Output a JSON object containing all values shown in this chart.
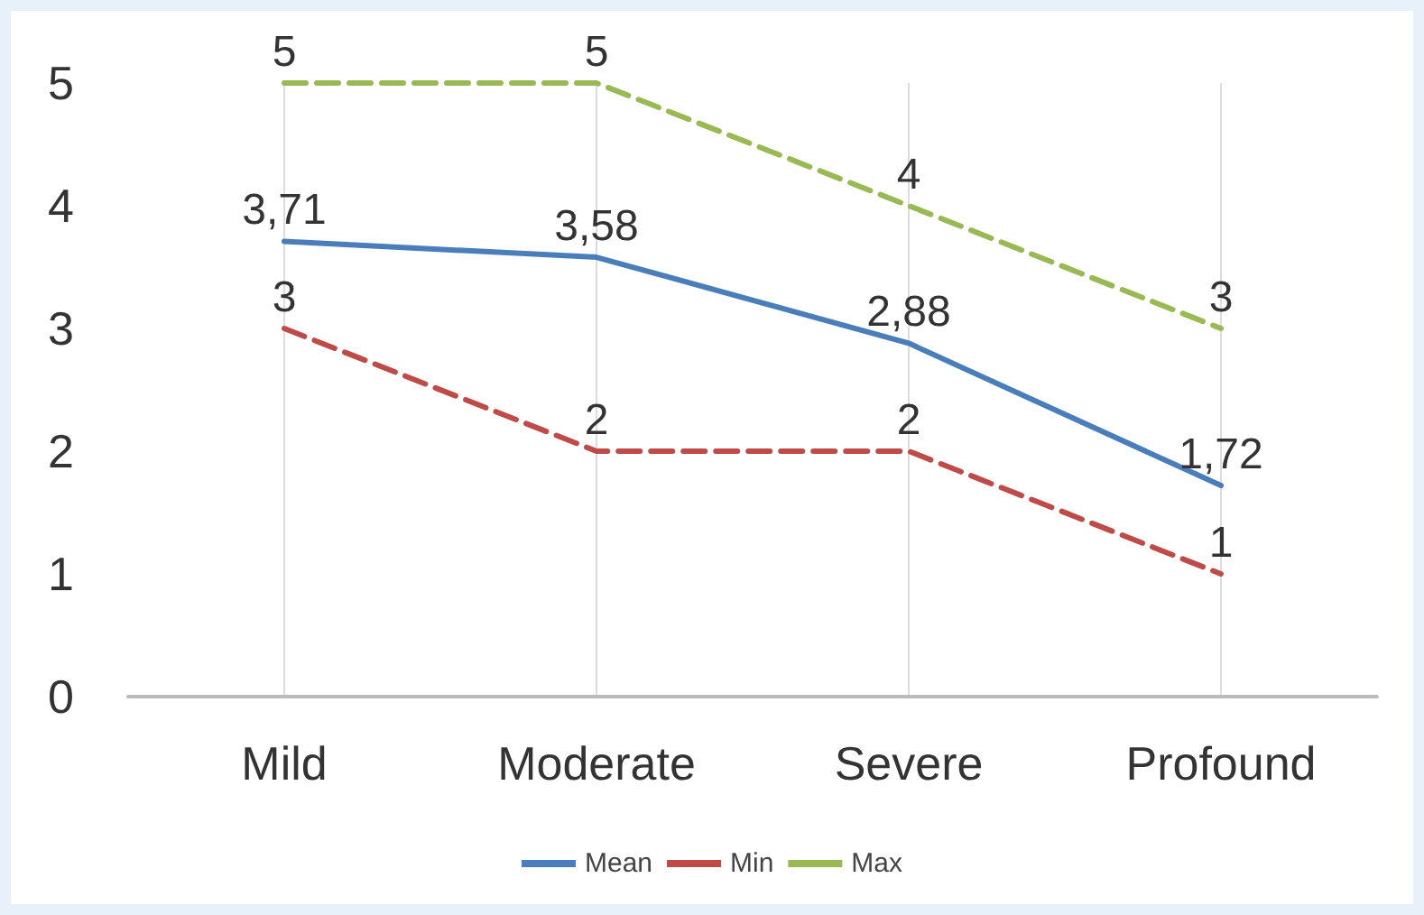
{
  "chart_data": {
    "type": "line",
    "categories": [
      "Mild",
      "Moderate",
      "Severe",
      "Profound"
    ],
    "series": [
      {
        "name": "Mean",
        "color": "#4a7ebb",
        "line_style": "solid",
        "values": [
          3.71,
          3.58,
          2.88,
          1.72
        ],
        "value_labels": [
          "3,71",
          "3,58",
          "2,88",
          "1,72"
        ]
      },
      {
        "name": "Min",
        "color": "#be4b48",
        "line_style": "dashed",
        "values": [
          3,
          2,
          2,
          1
        ],
        "value_labels": [
          "3",
          "2",
          "2",
          "1"
        ]
      },
      {
        "name": "Max",
        "color": "#98b954",
        "line_style": "dashed",
        "values": [
          5,
          5,
          4,
          3
        ],
        "value_labels": [
          "5",
          "5",
          "4",
          "3"
        ]
      }
    ],
    "ylim": [
      0,
      5
    ],
    "yticks": [
      0,
      1,
      2,
      3,
      4,
      5
    ],
    "grid": "x",
    "legend": "bottom",
    "marker": "none"
  }
}
